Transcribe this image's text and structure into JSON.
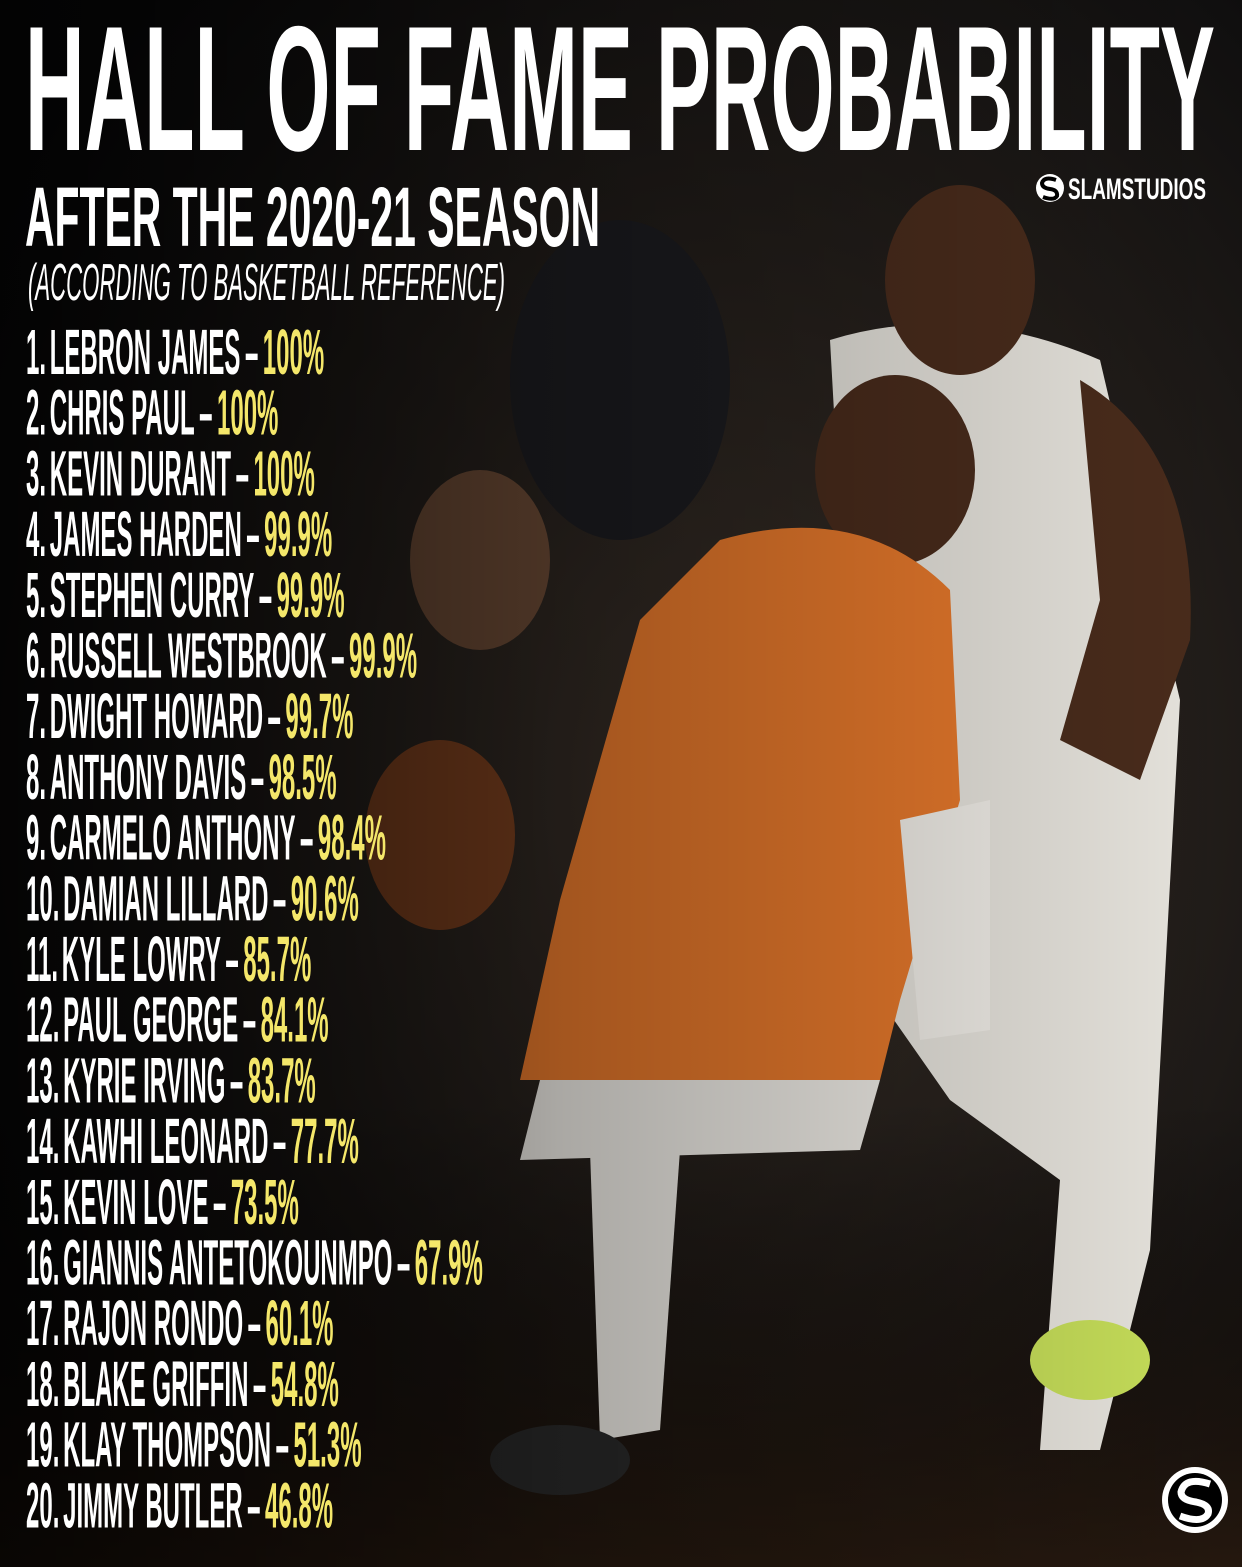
{
  "header": {
    "title": "HALL OF FAME PROBABILITY",
    "subtitle": "AFTER THE 2020-21 SEASON",
    "source": "(ACCORDING TO BASKETBALL REFERENCE)",
    "brand": "SLAMSTUDIOS"
  },
  "list": {
    "separator": "–",
    "items": [
      {
        "rank": "1.",
        "name": "LEBRON JAMES",
        "value": "100%"
      },
      {
        "rank": "2.",
        "name": "CHRIS PAUL",
        "value": "100%"
      },
      {
        "rank": "3.",
        "name": "KEVIN DURANT",
        "value": "100%"
      },
      {
        "rank": "4.",
        "name": "JAMES HARDEN",
        "value": "99.9%"
      },
      {
        "rank": "5.",
        "name": "STEPHEN CURRY",
        "value": "99.9%"
      },
      {
        "rank": "6.",
        "name": "RUSSELL WESTBROOK",
        "value": "99.9%"
      },
      {
        "rank": "7.",
        "name": "DWIGHT HOWARD",
        "value": "99.7%"
      },
      {
        "rank": "8.",
        "name": "ANTHONY DAVIS",
        "value": "98.5%"
      },
      {
        "rank": "9.",
        "name": "CARMELO ANTHONY",
        "value": "98.4%"
      },
      {
        "rank": "10.",
        "name": "DAMIAN LILLARD",
        "value": "90.6%"
      },
      {
        "rank": "11.",
        "name": "KYLE LOWRY",
        "value": "85.7%"
      },
      {
        "rank": "12.",
        "name": "PAUL GEORGE",
        "value": "84.1%"
      },
      {
        "rank": "13.",
        "name": "KYRIE IRVING",
        "value": "83.7%"
      },
      {
        "rank": "14.",
        "name": "KAWHI LEONARD",
        "value": "77.7%"
      },
      {
        "rank": "15.",
        "name": "KEVIN LOVE",
        "value": "73.5%"
      },
      {
        "rank": "16.",
        "name": "GIANNIS ANTETOKOUNMPO",
        "value": "67.9%"
      },
      {
        "rank": "17.",
        "name": "RAJON RONDO",
        "value": "60.1%"
      },
      {
        "rank": "18.",
        "name": "BLAKE GRIFFIN",
        "value": "54.8%"
      },
      {
        "rank": "19.",
        "name": "KLAY THOMPSON",
        "value": "51.3%"
      },
      {
        "rank": "20.",
        "name": "JIMMY BUTLER",
        "value": "46.8%"
      }
    ]
  }
}
